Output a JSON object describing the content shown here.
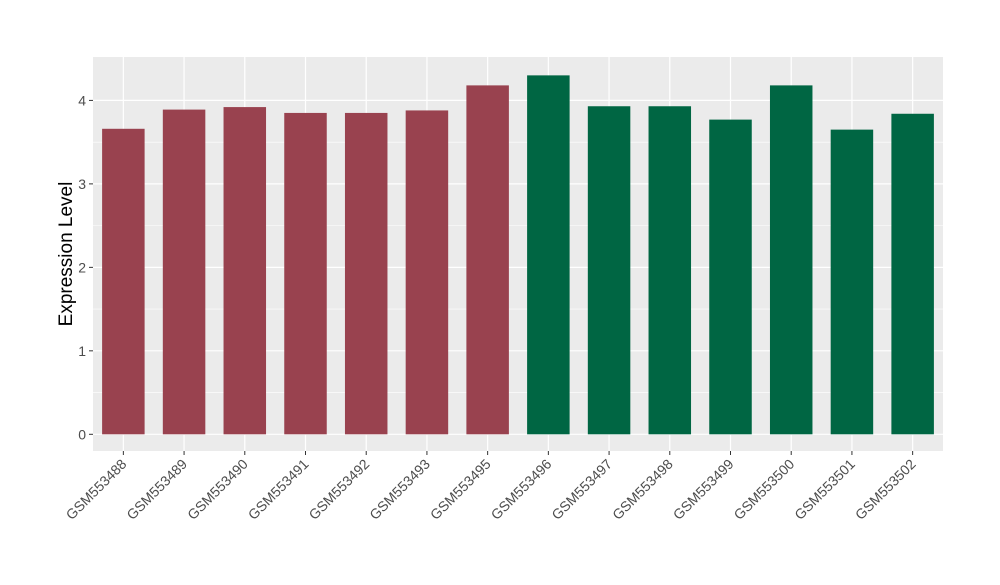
{
  "chart_data": {
    "type": "bar",
    "title": "",
    "xlabel": "",
    "ylabel": "Expression Level",
    "categories": [
      "GSM553488",
      "GSM553489",
      "GSM553490",
      "GSM553491",
      "GSM553492",
      "GSM553493",
      "GSM553495",
      "GSM553496",
      "GSM553497",
      "GSM553498",
      "GSM553499",
      "GSM553500",
      "GSM553501",
      "GSM553502"
    ],
    "values": [
      3.66,
      3.89,
      3.92,
      3.85,
      3.85,
      3.88,
      4.18,
      4.3,
      3.93,
      3.93,
      3.77,
      4.18,
      3.65,
      3.84
    ],
    "bar_colors": [
      "#99424f",
      "#99424f",
      "#99424f",
      "#99424f",
      "#99424f",
      "#99424f",
      "#99424f",
      "#006643",
      "#006643",
      "#006643",
      "#006643",
      "#006643",
      "#006643",
      "#006643"
    ],
    "ylim": [
      -0.2,
      4.52
    ],
    "yticks": [
      0,
      1,
      2,
      3,
      4
    ],
    "grid": true,
    "panel_background": "#ebebeb",
    "grid_color": "#ffffff",
    "axis_text_color": "#4d4d4d",
    "legend": "none"
  }
}
